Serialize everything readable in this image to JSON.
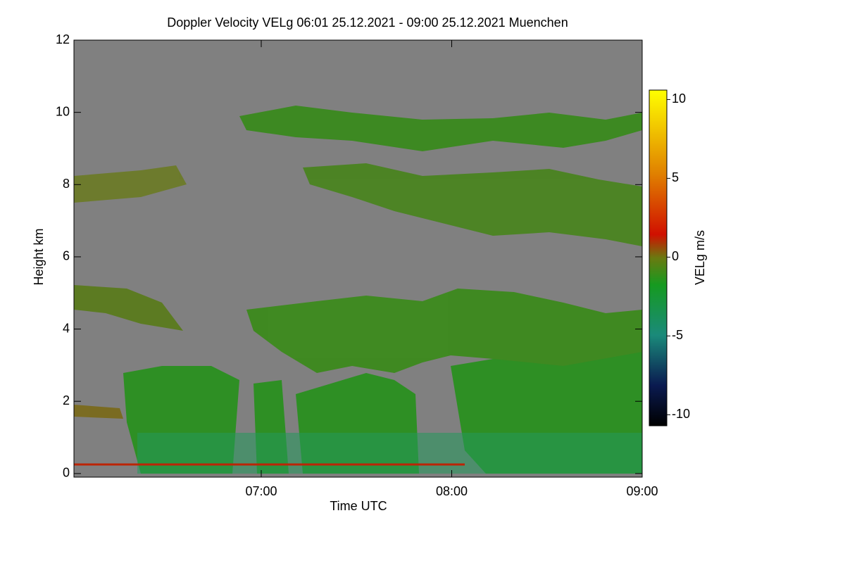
{
  "chart_data": {
    "type": "heatmap",
    "title": "Doppler Velocity VELg   06:01 25.12.2021 - 09:00 25.12.2021 Muenchen",
    "x_label": "Time UTC",
    "y_label": "Height km",
    "xlim": [
      361,
      540
    ],
    "xticks": [
      {
        "value": 420,
        "label": "07:00"
      },
      {
        "value": 480,
        "label": "08:00"
      },
      {
        "value": 540,
        "label": "09:00"
      }
    ],
    "ylim": [
      -0.1,
      12
    ],
    "yticks": [
      0,
      2,
      4,
      6,
      8,
      10,
      12
    ],
    "colorbar": {
      "label": "VELg m/s",
      "lim": [
        -10.7,
        10.6
      ],
      "ticks": [
        10,
        5,
        0,
        -5,
        -10
      ]
    }
  }
}
